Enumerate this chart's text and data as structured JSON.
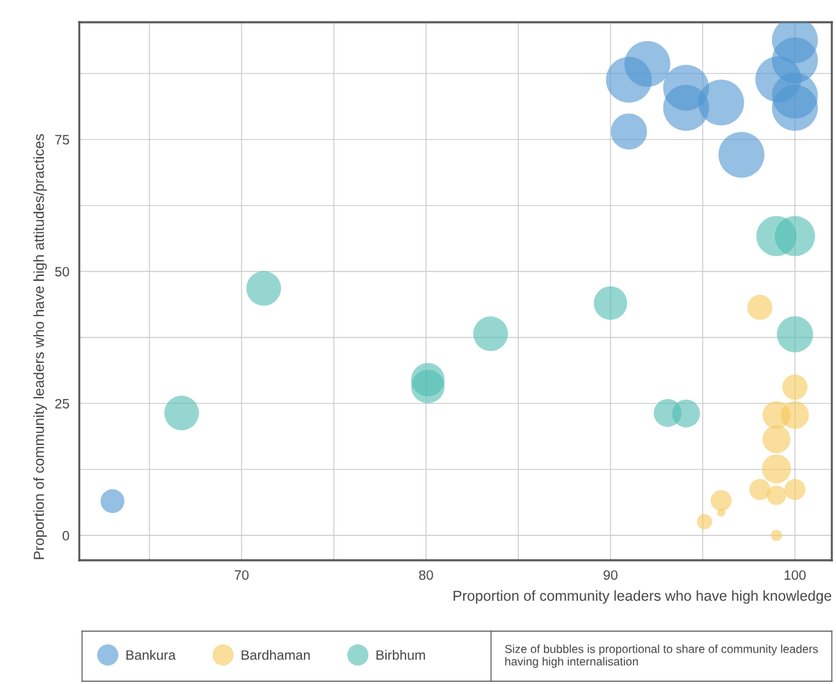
{
  "chart_data": {
    "type": "bubble",
    "xlabel": "Proportion of community leaders who have high knowledge",
    "ylabel": "Proportion of community leaders who have high attitudes/practices",
    "xlim": [
      61.2,
      102.0
    ],
    "ylim": [
      -4.7,
      97.2
    ],
    "xticks": [
      {
        "value": 65,
        "label": null
      },
      70,
      {
        "value": 75,
        "label": null
      },
      80,
      {
        "value": 85,
        "label": null
      },
      90,
      {
        "value": 95,
        "label": null
      },
      100
    ],
    "yticks": [
      0,
      {
        "value": 12.5,
        "label": null
      },
      25,
      {
        "value": 37.5,
        "label": null
      },
      50,
      {
        "value": 62.5,
        "label": null
      },
      75,
      {
        "value": 87.5,
        "label": null
      }
    ],
    "grid": true,
    "legend": "bottom",
    "annotations": [
      "Size of bubbles is proportional to share of community leaders having high internalisation"
    ],
    "series": [
      {
        "name": "Bankura",
        "color": "#4f95d0",
        "x": [
          63,
          91,
          91,
          92,
          94.1,
          94.1,
          96,
          97.1,
          99.1,
          100,
          100,
          100,
          100
        ],
        "values": [
          6.5,
          76.5,
          86.3,
          89.3,
          84.8,
          81,
          82,
          72.1,
          86.4,
          93.8,
          90,
          83.3,
          81
        ],
        "sizes": [
          0.27,
          0.62,
          1,
          1,
          1,
          1,
          1,
          1,
          1,
          1,
          1,
          1,
          1
        ]
      },
      {
        "name": "Bardhaman",
        "color": "#f5c85a",
        "x": [
          98.1,
          100,
          99,
          100,
          99,
          99,
          98.1,
          99,
          100,
          96,
          96,
          95.1,
          99
        ],
        "values": [
          43.2,
          28.1,
          22.8,
          22.8,
          18.2,
          12.6,
          8.7,
          7.6,
          8.7,
          6.6,
          4.3,
          2.6,
          0
        ],
        "sizes": [
          0.3,
          0.3,
          0.37,
          0.37,
          0.37,
          0.4,
          0.21,
          0.18,
          0.21,
          0.21,
          0.03,
          0.11,
          0.06
        ]
      },
      {
        "name": "Birbhum",
        "color": "#4fbdb0",
        "x": [
          66.75,
          71.2,
          80.1,
          80.1,
          83.5,
          90,
          93.1,
          94.1,
          99,
          100,
          100
        ],
        "values": [
          23.2,
          46.8,
          29.5,
          28.2,
          38.2,
          44,
          23.2,
          23.1,
          56.7,
          56.7,
          38.1
        ],
        "sizes": [
          0.57,
          0.57,
          0.53,
          0.53,
          0.57,
          0.53,
          0.37,
          0.37,
          0.77,
          0.77,
          0.62
        ]
      }
    ]
  }
}
